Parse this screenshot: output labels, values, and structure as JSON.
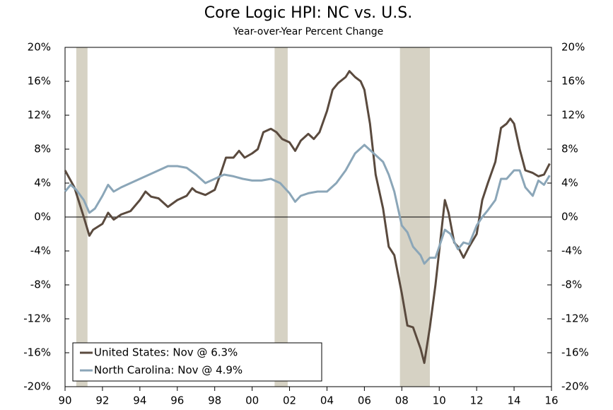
{
  "chart_data": {
    "type": "line",
    "title": "Core Logic HPI: NC vs. U.S.",
    "subtitle": "Year-over-Year Percent Change",
    "xlim": [
      1990,
      2016
    ],
    "xticks": [
      {
        "value": 1990,
        "label": "90"
      },
      {
        "value": 1992,
        "label": "92"
      },
      {
        "value": 1994,
        "label": "94"
      },
      {
        "value": 1996,
        "label": "96"
      },
      {
        "value": 1998,
        "label": "98"
      },
      {
        "value": 2000,
        "label": "00"
      },
      {
        "value": 2002,
        "label": "02"
      },
      {
        "value": 2004,
        "label": "04"
      },
      {
        "value": 2006,
        "label": "06"
      },
      {
        "value": 2008,
        "label": "08"
      },
      {
        "value": 2010,
        "label": "10"
      },
      {
        "value": 2012,
        "label": "12"
      },
      {
        "value": 2014,
        "label": "14"
      },
      {
        "value": 2016,
        "label": "16"
      }
    ],
    "ylim": [
      -20,
      20
    ],
    "yticks": [
      {
        "value": -20,
        "label": "-20%"
      },
      {
        "value": -16,
        "label": "-16%"
      },
      {
        "value": -12,
        "label": "-12%"
      },
      {
        "value": -8,
        "label": "-8%"
      },
      {
        "value": -4,
        "label": "-4%"
      },
      {
        "value": 0,
        "label": "0%"
      },
      {
        "value": 4,
        "label": "4%"
      },
      {
        "value": 8,
        "label": "8%"
      },
      {
        "value": 12,
        "label": "12%"
      },
      {
        "value": 16,
        "label": "16%"
      },
      {
        "value": 20,
        "label": "20%"
      }
    ],
    "y2lim": [
      -20,
      20
    ],
    "y2ticks": [
      {
        "value": -20,
        "label": "-20%"
      },
      {
        "value": -16,
        "label": "-16%"
      },
      {
        "value": -12,
        "label": "-12%"
      },
      {
        "value": -8,
        "label": "-8%"
      },
      {
        "value": -4,
        "label": "-4%"
      },
      {
        "value": 0,
        "label": "0%"
      },
      {
        "value": 4,
        "label": "4%"
      },
      {
        "value": 8,
        "label": "8%"
      },
      {
        "value": 12,
        "label": "12%"
      },
      {
        "value": 16,
        "label": "16%"
      },
      {
        "value": 20,
        "label": "20%"
      }
    ],
    "shaded_periods": [
      [
        1990.6,
        1991.2
      ],
      [
        2001.2,
        2001.9
      ],
      [
        2007.9,
        2009.5
      ]
    ],
    "shade_color": "#d6d2c4",
    "legend": "lower left",
    "series": [
      {
        "name": "United States: Nov @ 6.3%",
        "color": "#5a4a3e",
        "x": [
          1990.0,
          1990.5,
          1991.0,
          1991.3,
          1991.5,
          1992.0,
          1992.3,
          1992.6,
          1993.0,
          1993.5,
          1994.0,
          1994.3,
          1994.6,
          1995.0,
          1995.5,
          1996.0,
          1996.5,
          1996.8,
          1997.0,
          1997.5,
          1998.0,
          1998.3,
          1998.6,
          1999.0,
          1999.3,
          1999.6,
          2000.0,
          2000.3,
          2000.6,
          2001.0,
          2001.3,
          2001.6,
          2002.0,
          2002.3,
          2002.6,
          2003.0,
          2003.3,
          2003.6,
          2004.0,
          2004.3,
          2004.6,
          2005.0,
          2005.2,
          2005.5,
          2005.8,
          2006.0,
          2006.3,
          2006.6,
          2007.0,
          2007.3,
          2007.6,
          2008.0,
          2008.3,
          2008.6,
          2009.0,
          2009.2,
          2009.5,
          2009.8,
          2010.0,
          2010.3,
          2010.5,
          2010.8,
          2011.0,
          2011.3,
          2011.6,
          2012.0,
          2012.3,
          2012.6,
          2013.0,
          2013.3,
          2013.6,
          2013.8,
          2014.0,
          2014.3,
          2014.6,
          2015.0,
          2015.3,
          2015.6,
          2015.9
        ],
        "values": [
          5.5,
          3.5,
          0,
          -2.2,
          -1.5,
          -0.8,
          0.5,
          -0.3,
          0.3,
          0.7,
          2.0,
          3.0,
          2.4,
          2.2,
          1.2,
          2.0,
          2.5,
          3.4,
          3.0,
          2.6,
          3.2,
          5.0,
          7.0,
          7.0,
          7.8,
          7.0,
          7.5,
          8.0,
          10.0,
          10.4,
          10.0,
          9.2,
          8.8,
          7.8,
          9.0,
          9.8,
          9.2,
          10.0,
          12.5,
          15.0,
          15.8,
          16.5,
          17.2,
          16.5,
          16.0,
          15.0,
          11.0,
          5.0,
          1.0,
          -3.5,
          -4.5,
          -9.0,
          -12.8,
          -13.0,
          -15.5,
          -17.2,
          -13.0,
          -8.0,
          -4.0,
          2.0,
          0.5,
          -3.0,
          -3.5,
          -4.8,
          -3.5,
          -2.0,
          2.0,
          4.0,
          6.5,
          10.5,
          11.0,
          11.6,
          11.0,
          8.0,
          5.5,
          5.2,
          4.8,
          5.0,
          6.3
        ]
      },
      {
        "name": "North Carolina: Nov @ 4.9%",
        "color": "#8ba6b8",
        "x": [
          1990.0,
          1990.3,
          1990.6,
          1991.0,
          1991.3,
          1991.6,
          1992.0,
          1992.3,
          1992.6,
          1993.0,
          1993.5,
          1994.0,
          1994.5,
          1995.0,
          1995.5,
          1996.0,
          1996.5,
          1997.0,
          1997.5,
          1998.0,
          1998.5,
          1999.0,
          1999.5,
          2000.0,
          2000.5,
          2001.0,
          2001.5,
          2002.0,
          2002.3,
          2002.6,
          2003.0,
          2003.5,
          2004.0,
          2004.5,
          2005.0,
          2005.5,
          2006.0,
          2006.5,
          2007.0,
          2007.3,
          2007.6,
          2008.0,
          2008.3,
          2008.6,
          2009.0,
          2009.2,
          2009.5,
          2009.8,
          2010.0,
          2010.3,
          2010.6,
          2011.0,
          2011.3,
          2011.6,
          2012.0,
          2012.3,
          2012.6,
          2013.0,
          2013.3,
          2013.6,
          2014.0,
          2014.3,
          2014.6,
          2015.0,
          2015.3,
          2015.6,
          2015.9
        ],
        "values": [
          3.0,
          3.8,
          3.2,
          2.0,
          0.5,
          1.0,
          2.5,
          3.8,
          3.0,
          3.5,
          4.0,
          4.5,
          5.0,
          5.5,
          6.0,
          6.0,
          5.8,
          5.0,
          4.0,
          4.5,
          5.0,
          4.8,
          4.5,
          4.3,
          4.3,
          4.5,
          4.0,
          2.8,
          1.8,
          2.5,
          2.8,
          3.0,
          3.0,
          4.0,
          5.5,
          7.5,
          8.5,
          7.5,
          6.5,
          5.0,
          3.0,
          -1.0,
          -1.8,
          -3.5,
          -4.5,
          -5.5,
          -4.8,
          -4.8,
          -3.5,
          -1.5,
          -2.0,
          -3.8,
          -3.0,
          -3.2,
          -1.0,
          0.0,
          0.8,
          2.0,
          4.5,
          4.5,
          5.5,
          5.5,
          3.5,
          2.5,
          4.3,
          3.8,
          4.9
        ]
      }
    ]
  }
}
